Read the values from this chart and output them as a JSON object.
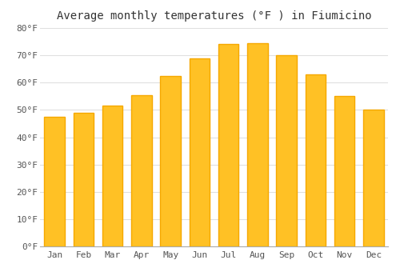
{
  "title": "Average monthly temperatures (°F ) in Fiumicino",
  "months": [
    "Jan",
    "Feb",
    "Mar",
    "Apr",
    "May",
    "Jun",
    "Jul",
    "Aug",
    "Sep",
    "Oct",
    "Nov",
    "Dec"
  ],
  "values": [
    47.5,
    49.0,
    51.5,
    55.5,
    62.5,
    69.0,
    74.0,
    74.5,
    70.0,
    63.0,
    55.0,
    50.0
  ],
  "bar_color_main": "#FFC125",
  "bar_color_edge": "#F5A800",
  "ylim": [
    0,
    80
  ],
  "yticks": [
    0,
    10,
    20,
    30,
    40,
    50,
    60,
    70,
    80
  ],
  "ytick_labels": [
    "0°F",
    "10°F",
    "20°F",
    "30°F",
    "40°F",
    "50°F",
    "60°F",
    "70°F",
    "80°F"
  ],
  "background_color": "#FFFFFF",
  "grid_color": "#E0E0E0",
  "title_fontsize": 10,
  "tick_fontsize": 8,
  "tick_color": "#555555"
}
